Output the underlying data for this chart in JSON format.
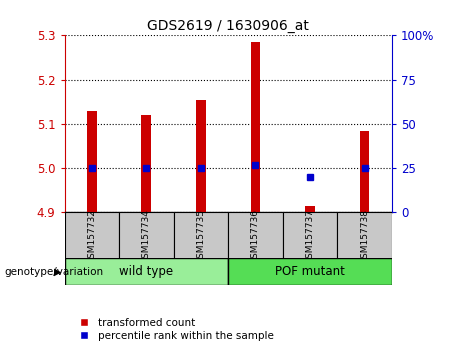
{
  "title": "GDS2619 / 1630906_at",
  "samples": [
    "GSM157732",
    "GSM157734",
    "GSM157735",
    "GSM157736",
    "GSM157737",
    "GSM157738"
  ],
  "bar_values": [
    5.13,
    5.12,
    5.155,
    5.285,
    4.915,
    5.085
  ],
  "bar_base": 4.9,
  "percentile_values": [
    25,
    25,
    25,
    27,
    20,
    25
  ],
  "ylim_left": [
    4.9,
    5.3
  ],
  "ylim_right": [
    0,
    100
  ],
  "yticks_left": [
    4.9,
    5.0,
    5.1,
    5.2,
    5.3
  ],
  "yticks_right": [
    0,
    25,
    50,
    75,
    100
  ],
  "ytick_labels_right": [
    "0",
    "25",
    "50",
    "75",
    "100%"
  ],
  "bar_color": "#cc0000",
  "dot_color": "#0000cc",
  "groups": [
    {
      "label": "wild type",
      "color": "#99ee99",
      "start": 0,
      "end": 3
    },
    {
      "label": "POF mutant",
      "color": "#55dd55",
      "start": 3,
      "end": 6
    }
  ],
  "group_label": "genotype/variation",
  "legend_bar_label": "transformed count",
  "legend_dot_label": "percentile rank within the sample",
  "sample_box_color": "#c8c8c8",
  "left_tick_color": "#cc0000",
  "right_tick_color": "#0000cc",
  "bar_width": 0.18
}
